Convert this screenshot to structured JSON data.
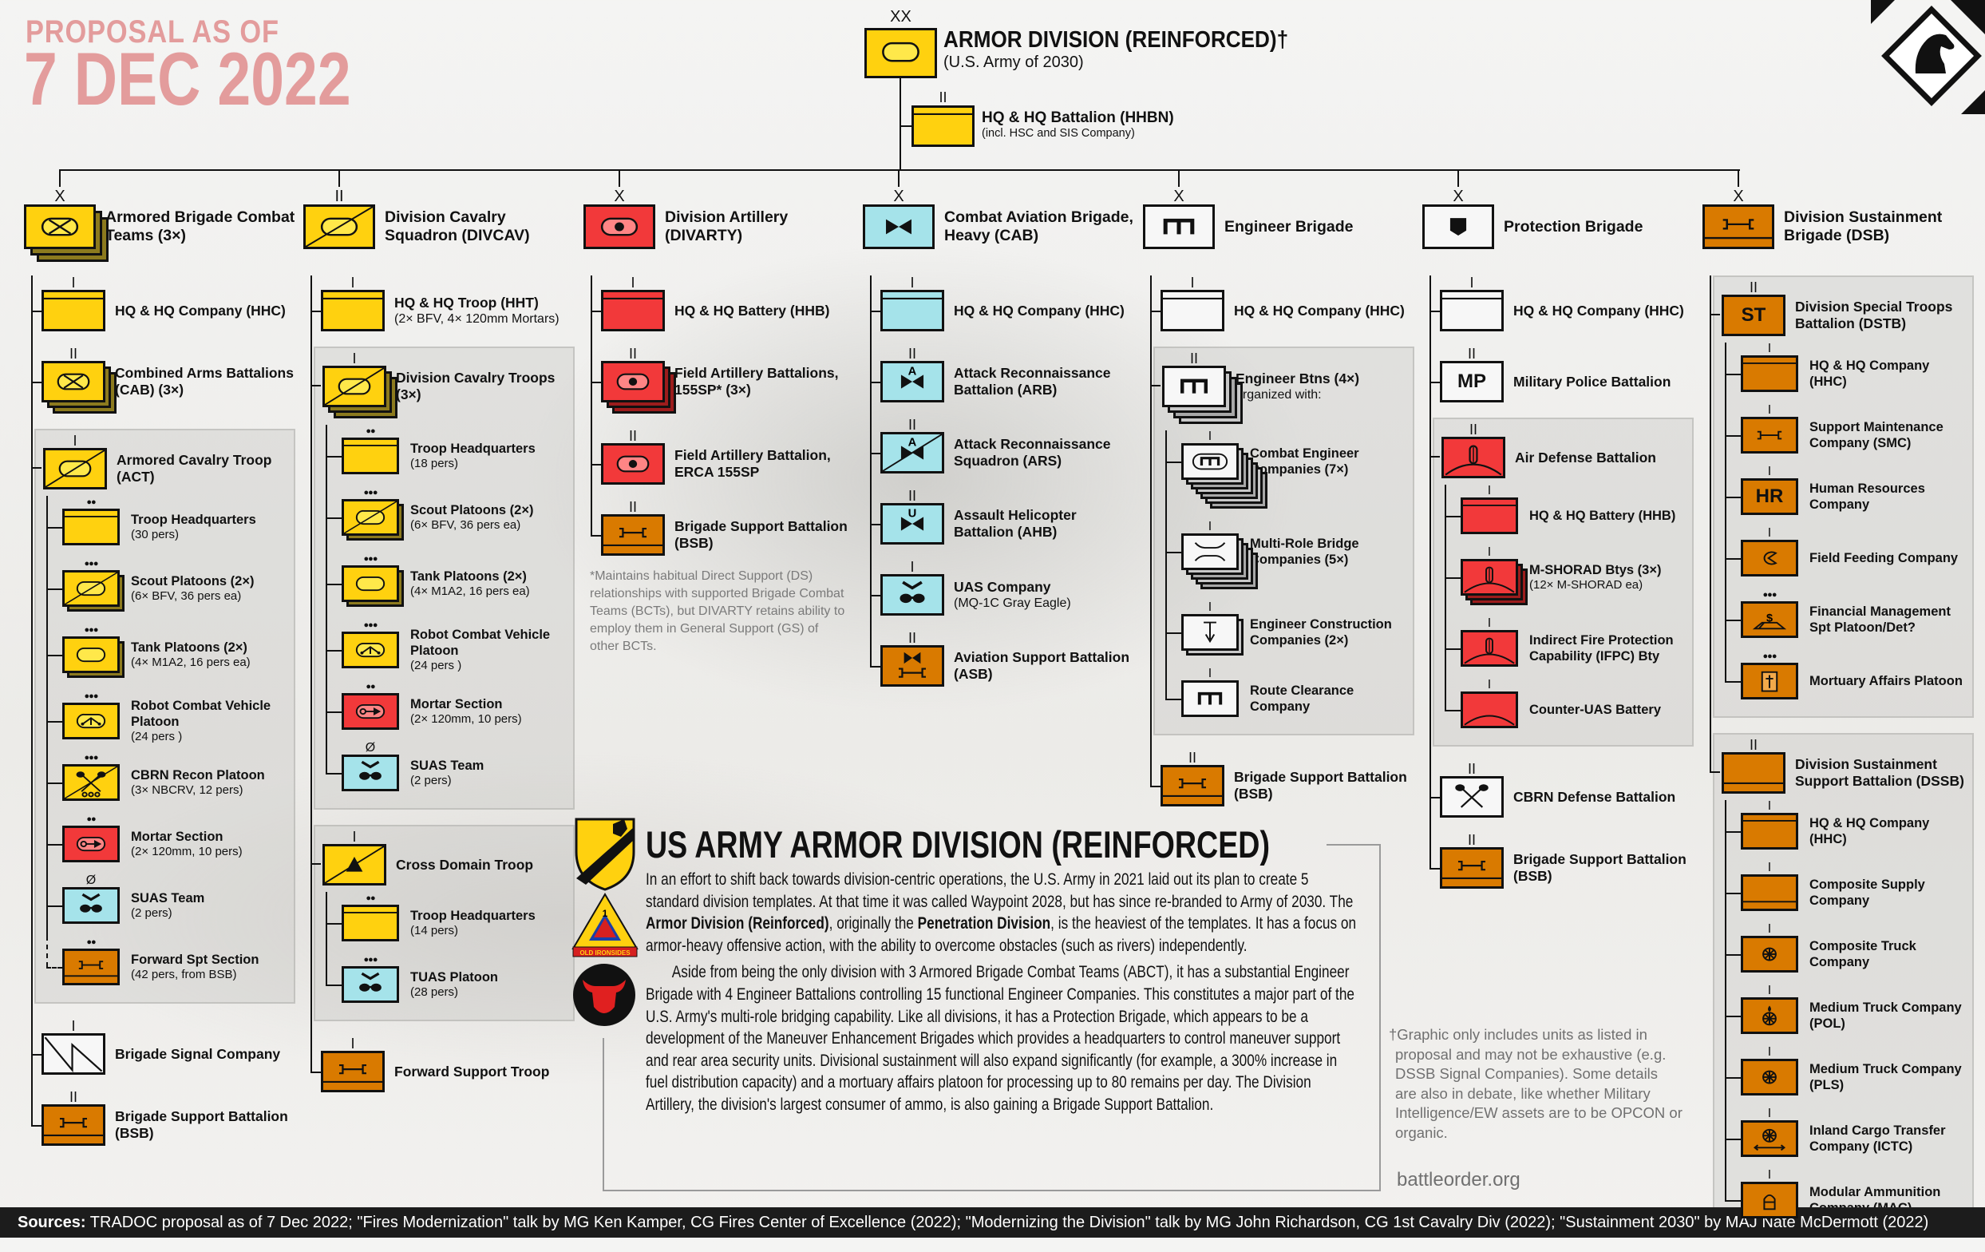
{
  "colors": {
    "yellow": "#ffd10f",
    "yellow_inner": "#ffe84a",
    "yellow_stack": "#8c7a1e",
    "red": "#f2393a",
    "red_inner": "#ff8585",
    "red_stack": "#9c1c1c",
    "blue": "#a5e3ea",
    "blue_inner": "#a5e3ea",
    "blue_stack": "#5fa9b3",
    "white": "#f7f7f7",
    "white_inner": "#f7f7f7",
    "white_stack": "#a8a8a8",
    "orange": "#d97a00",
    "orange_inner": "#d97a00",
    "orange_stack": "#8a4d00",
    "title": "#e39c9c",
    "footer_bg": "#1c1c1c"
  },
  "proposal": {
    "line1": "PROPOSAL AS OF",
    "line2": "7 DEC 2022"
  },
  "division": {
    "echelon": "XX",
    "title": "ARMOR DIVISION (REINFORCED)†",
    "subtitle": "(U.S. Army of 2030)",
    "icon": "armor"
  },
  "hhbn": {
    "echelon": "II",
    "label": "HQ & HQ Battalion (HHBN)",
    "sub": "(incl. HSC and SIS Company)",
    "icon": "hq",
    "color": "yellow"
  },
  "columns": [
    {
      "header": {
        "echelon": "X",
        "label": "Armored Brigade Combat Teams (3×)",
        "color": "yellow",
        "icon": "armor-mech",
        "stack": 3
      },
      "items": [
        {
          "echelon": "I",
          "label": "HQ & HQ Company (HHC)",
          "color": "yellow",
          "icon": "hq"
        },
        {
          "echelon": "II",
          "label": "Combined Arms Battalions (CAB) (3×)",
          "color": "yellow",
          "icon": "armor-mech",
          "stack": 3
        },
        {
          "echelon": "I",
          "label": "Armored Cavalry Troop (ACT)",
          "color": "yellow",
          "icon": "cavalry-armor",
          "children": [
            {
              "echelon": "●●",
              "label": "Troop Headquarters",
              "sub": "(30 pers)",
              "color": "yellow",
              "icon": "hq"
            },
            {
              "echelon": "●●●",
              "label": "Scout Platoons (2×)",
              "sub": "(6× BFV, 36 pers ea)",
              "color": "yellow",
              "icon": "cavalry-armor",
              "stack": 2
            },
            {
              "echelon": "●●●",
              "label": "Tank Platoons (2×)",
              "sub": "(4× M1A2, 16 pers ea)",
              "color": "yellow",
              "icon": "armor",
              "stack": 2
            },
            {
              "echelon": "●●●",
              "label": "Robot Combat Vehicle Platoon",
              "sub": "(24 pers )",
              "color": "yellow",
              "icon": "rcv"
            },
            {
              "echelon": "●●●",
              "label": "CBRN Recon Platoon",
              "sub": "(3× NBCRV, 12 pers)",
              "color": "yellow",
              "icon": "cbrn-recon"
            },
            {
              "echelon": "●●",
              "label": "Mortar Section",
              "sub": "(2× 120mm, 10 pers)",
              "color": "red",
              "icon": "mortar"
            },
            {
              "echelon": "Ø",
              "label": "SUAS Team",
              "sub": "(2 pers)",
              "color": "blue",
              "icon": "uas"
            },
            {
              "echelon": "●●",
              "label": "Forward Spt Section",
              "sub": "(42 pers, from BSB)",
              "color": "orange",
              "icon": "sustain",
              "attached": true
            }
          ]
        },
        {
          "echelon": "I",
          "label": "Brigade Signal Company",
          "color": "white",
          "icon": "signal"
        },
        {
          "echelon": "II",
          "label": "Brigade Support Battalion (BSB)",
          "color": "orange",
          "icon": "sustain"
        }
      ]
    },
    {
      "header": {
        "echelon": "II",
        "label": "Division Cavalry Squadron (DIVCAV)",
        "color": "yellow",
        "icon": "cavalry-armor"
      },
      "items": [
        {
          "echelon": "I",
          "label": "HQ & HQ Troop (HHT)",
          "sub": "(2× BFV, 4× 120mm Mortars)",
          "color": "yellow",
          "icon": "hq"
        },
        {
          "echelon": "I",
          "label": "Division Cavalry Troops (3×)",
          "color": "yellow",
          "icon": "cavalry-armor",
          "stack": 3,
          "children": [
            {
              "echelon": "●●",
              "label": "Troop Headquarters",
              "sub": "(18 pers)",
              "color": "yellow",
              "icon": "hq"
            },
            {
              "echelon": "●●●",
              "label": "Scout Platoons (2×)",
              "sub": "(6× BFV, 36 pers ea)",
              "color": "yellow",
              "icon": "cavalry-armor",
              "stack": 2
            },
            {
              "echelon": "●●●",
              "label": "Tank Platoons (2×)",
              "sub": "(4× M1A2, 16 pers ea)",
              "color": "yellow",
              "icon": "armor",
              "stack": 2
            },
            {
              "echelon": "●●●",
              "label": "Robot Combat Vehicle Platoon",
              "sub": "(24 pers )",
              "color": "yellow",
              "icon": "rcv"
            },
            {
              "echelon": "●●",
              "label": "Mortar Section",
              "sub": "(2× 120mm, 10 pers)",
              "color": "red",
              "icon": "mortar"
            },
            {
              "echelon": "Ø",
              "label": "SUAS Team",
              "sub": "(2 pers)",
              "color": "blue",
              "icon": "uas"
            }
          ]
        },
        {
          "echelon": "I",
          "label": "Cross Domain Troop",
          "color": "yellow",
          "icon": "cross-domain",
          "children": [
            {
              "echelon": "●●",
              "label": "Troop Headquarters",
              "sub": "(14 pers)",
              "color": "yellow",
              "icon": "hq"
            },
            {
              "echelon": "●●●",
              "label": "TUAS Platoon",
              "sub": "(28 pers)",
              "color": "blue",
              "icon": "uas"
            }
          ]
        },
        {
          "echelon": "I",
          "label": "Forward Support Troop",
          "color": "orange",
          "icon": "sustain"
        }
      ]
    },
    {
      "header": {
        "echelon": "X",
        "label": "Division Artillery (DIVARTY)",
        "color": "red",
        "icon": "artillery"
      },
      "items": [
        {
          "echelon": "I",
          "label": "HQ & HQ Battery (HHB)",
          "color": "red",
          "icon": "hq"
        },
        {
          "echelon": "II",
          "label": "Field Artillery Battalions, 155SP* (3×)",
          "color": "red",
          "icon": "artillery",
          "stack": 3
        },
        {
          "echelon": "II",
          "label": "Field Artillery Battalion, ERCA 155SP",
          "color": "red",
          "icon": "artillery"
        },
        {
          "echelon": "II",
          "label": "Brigade Support Battalion (BSB)",
          "color": "orange",
          "icon": "sustain"
        }
      ],
      "note": "*Maintains habitual Direct Support (DS) relationships with supported Brigade Combat Teams (BCTs), but DIVARTY retains ability to employ them in General Support (GS) of other BCTs."
    },
    {
      "header": {
        "echelon": "X",
        "label": "Combat Aviation Brigade, Heavy (CAB)",
        "color": "blue",
        "icon": "aviation"
      },
      "items": [
        {
          "echelon": "I",
          "label": "HQ & HQ Company (HHC)",
          "color": "blue",
          "icon": "hq"
        },
        {
          "echelon": "II",
          "label": "Attack Reconnaissance Battalion (ARB)",
          "color": "blue",
          "icon": "aviation-attack"
        },
        {
          "echelon": "II",
          "label": "Attack Reconnaissance Squadron (ARS)",
          "color": "blue",
          "icon": "aviation-attack-cav"
        },
        {
          "echelon": "II",
          "label": "Assault Helicopter Battalion (AHB)",
          "color": "blue",
          "icon": "aviation-utility"
        },
        {
          "echelon": "I",
          "label": "UAS Company",
          "sub": "(MQ-1C Gray Eagle)",
          "color": "blue",
          "icon": "uas"
        },
        {
          "echelon": "II",
          "label": "Aviation Support Battalion (ASB)",
          "color": "orange",
          "icon": "aviation-sustain"
        }
      ]
    },
    {
      "header": {
        "echelon": "X",
        "label": "Engineer Brigade",
        "color": "white",
        "icon": "engineer"
      },
      "items": [
        {
          "echelon": "I",
          "label": "HQ & HQ Company (HHC)",
          "color": "white",
          "icon": "hq"
        },
        {
          "echelon": "II",
          "label": "Engineer Btns (4×)",
          "sub": "organized with:",
          "color": "white",
          "icon": "engineer",
          "stack": 4,
          "children": [
            {
              "echelon": "I",
              "label": "Combat Engineer Companies (7×)",
              "color": "white",
              "icon": "engineer-armored",
              "stack": 7
            },
            {
              "echelon": "I",
              "label": "Multi-Role Bridge Companies (5×)",
              "color": "white",
              "icon": "bridge",
              "stack": 5
            },
            {
              "echelon": "I",
              "label": "Engineer Construction Companies (2×)",
              "color": "white",
              "icon": "construction",
              "stack": 2
            },
            {
              "echelon": "I",
              "label": "Route Clearance Company",
              "color": "white",
              "icon": "engineer"
            }
          ]
        },
        {
          "echelon": "II",
          "label": "Brigade Support Battalion (BSB)",
          "color": "orange",
          "icon": "sustain"
        }
      ]
    },
    {
      "header": {
        "echelon": "X",
        "label": "Protection Brigade",
        "color": "white",
        "icon": "protection"
      },
      "items": [
        {
          "echelon": "I",
          "label": "HQ & HQ Company (HHC)",
          "color": "white",
          "icon": "hq"
        },
        {
          "echelon": "II",
          "label": "Military Police Battalion",
          "color": "white",
          "icon": "text",
          "symbol_text": "MP"
        },
        {
          "echelon": "II",
          "label": "Air Defense Battalion",
          "color": "red",
          "icon": "air-defense",
          "children": [
            {
              "echelon": "I",
              "label": "HQ & HQ Battery (HHB)",
              "color": "red",
              "icon": "hq"
            },
            {
              "echelon": "I",
              "label": "M-SHORAD Btys (3×)",
              "sub": "(12× M-SHORAD ea)",
              "color": "red",
              "icon": "air-defense",
              "stack": 3
            },
            {
              "echelon": "I",
              "label": "Indirect Fire Protection Capability (IFPC) Bty",
              "color": "red",
              "icon": "air-defense"
            },
            {
              "echelon": "I",
              "label": "Counter-UAS Battery",
              "color": "red",
              "icon": "air-defense-dome"
            }
          ]
        },
        {
          "echelon": "II",
          "label": "CBRN Defense Battalion",
          "color": "white",
          "icon": "cbrn"
        },
        {
          "echelon": "II",
          "label": "Brigade Support Battalion (BSB)",
          "color": "orange",
          "icon": "sustain"
        }
      ]
    },
    {
      "header": {
        "echelon": "X",
        "label": "Division Sustainment Brigade (DSB)",
        "color": "orange",
        "icon": "sustain"
      },
      "items": [
        {
          "echelon": "II",
          "label": "Division Special Troops Battalion (DSTB)",
          "color": "orange",
          "icon": "text",
          "symbol_text": "ST",
          "children": [
            {
              "echelon": "I",
              "label": "HQ & HQ Company (HHC)",
              "color": "orange",
              "icon": "hq"
            },
            {
              "echelon": "I",
              "label": "Support Maintenance Company (SMC)",
              "color": "orange",
              "icon": "maintenance"
            },
            {
              "echelon": "I",
              "label": "Human Resources Company",
              "color": "orange",
              "icon": "text",
              "symbol_text": "HR"
            },
            {
              "echelon": "I",
              "label": "Field Feeding Company",
              "color": "orange",
              "icon": "field-feeding"
            },
            {
              "echelon": "●●●",
              "label": "Financial Management Spt Platoon/Det?",
              "color": "orange",
              "icon": "finance"
            },
            {
              "echelon": "●●●",
              "label": "Mortuary Affairs Platoon",
              "color": "orange",
              "icon": "mortuary"
            }
          ]
        },
        {
          "echelon": "II",
          "label": "Division Sustainment Support Battalion (DSSB)",
          "color": "orange",
          "icon": "supply",
          "children": [
            {
              "echelon": "I",
              "label": "HQ & HQ Company (HHC)",
              "color": "orange",
              "icon": "hq"
            },
            {
              "echelon": "I",
              "label": "Composite Supply Company",
              "color": "orange",
              "icon": "supply"
            },
            {
              "echelon": "I",
              "label": "Composite Truck Company",
              "color": "orange",
              "icon": "wheel"
            },
            {
              "echelon": "I",
              "label": "Medium Truck Company (POL)",
              "color": "orange",
              "icon": "wheel-pol"
            },
            {
              "echelon": "I",
              "label": "Medium Truck Company (PLS)",
              "color": "orange",
              "icon": "wheel"
            },
            {
              "echelon": "I",
              "label": "Inland Cargo Transfer Company (ICTC)",
              "color": "orange",
              "icon": "wheel-arrow"
            },
            {
              "echelon": "I",
              "label": "Modular Ammunition Company (MAC)",
              "color": "orange",
              "icon": "ammo"
            }
          ]
        }
      ]
    }
  ],
  "article": {
    "title": "US ARMY ARMOR DIVISION (REINFORCED)",
    "p1": [
      {
        "t": "In an effort to shift back towards division-centric operations, the U.S. Army in 2021 laid out its plan to create 5 standard division templates. At that time it was called Waypoint 2028, but has since re-branded to Army of 2030. The "
      },
      {
        "t": "Armor Division (Reinforced)",
        "b": true
      },
      {
        "t": ", originally the "
      },
      {
        "t": "Penetration Division",
        "b": true
      },
      {
        "t": ", is the heaviest of the templates. It has a focus on armor-heavy offensive action, with the ability to overcome obstacles (such as rivers) independently."
      }
    ],
    "p2": "Aside from being the only division with 3 Armored Brigade Combat Teams (ABCT), it has a substantial Engineer Brigade with 4 Engineer Battalions controlling 15 functional Engineer Companies. This constitutes a major part of the U.S. Army's multi-role bridging capability. Like all divisions, it has a Protection Brigade, which appears to be a development of the Maneuver Enhancement Brigades which provides a headquarters to control maneuver support and rear area security units. Divisional sustainment will also expand significantly (for example, a 300% increase in fuel distribution capacity) and a mortuary affairs platoon for processing up to 80 remains per day. The Division Artillery, the division's largest consumer of ammo, is also gaining a Brigade Support Battalion.",
    "patches": [
      "1st-cavalry-division-patch",
      "1st-armored-division-patch",
      "red-bull-patch"
    ],
    "patch_text": "OLD IRONSIDES"
  },
  "footnote": "†Graphic only includes units as listed in proposal and may not be exhaustive (e.g. DSSB Signal Companies). Some details are also in debate, like whether Military Intelligence/EW assets are to be OPCON or organic.",
  "site": "battleorder.org",
  "footer": {
    "label": "Sources:",
    "text": " TRADOC proposal as of 7 Dec 2022; \"Fires Modernization\" talk by MG Ken Kamper, CG Fires Center of Excellence (2022); \"Modernizing the Division\" talk by MG John Richardson, CG 1st Cavalry Div (2022); \"Sustainment 2030\" by MAJ Nate McDermott (2022)"
  },
  "logo": "battle-order-knight-logo"
}
